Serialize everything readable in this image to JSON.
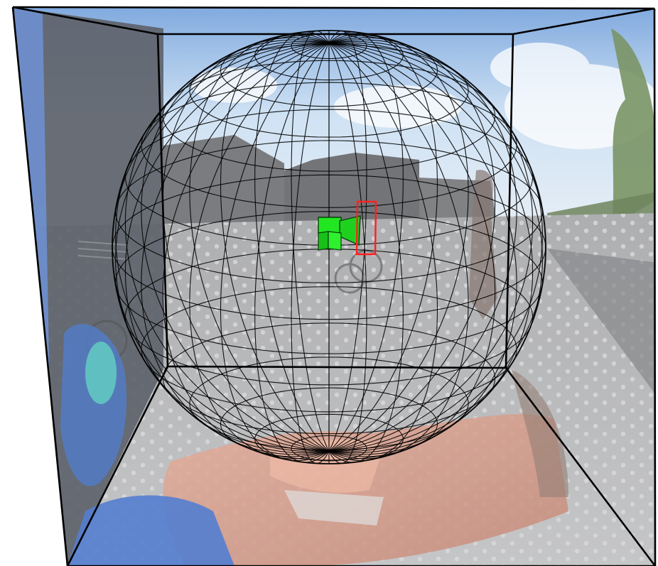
{
  "scene": {
    "description_free": true,
    "colors": {
      "sky": "#b9d3ee",
      "sky_top": "#6f9fd6",
      "building": "#5d5e61",
      "ground": "#a7a8aa",
      "ground_dot": "#cfd0d2",
      "skin": "#d48a72",
      "jacket": "#2e63c7",
      "glove": "#3fb7b4",
      "wall_left": "#3a3f4a",
      "tree": "#6a8c4c",
      "wire": "#000000",
      "camera": "#22e622",
      "frustum": "#ff2020"
    },
    "sphere": {
      "meridians": 36,
      "parallels": 18
    },
    "icons": [
      "camera-icon",
      "view-frustum-icon"
    ]
  }
}
